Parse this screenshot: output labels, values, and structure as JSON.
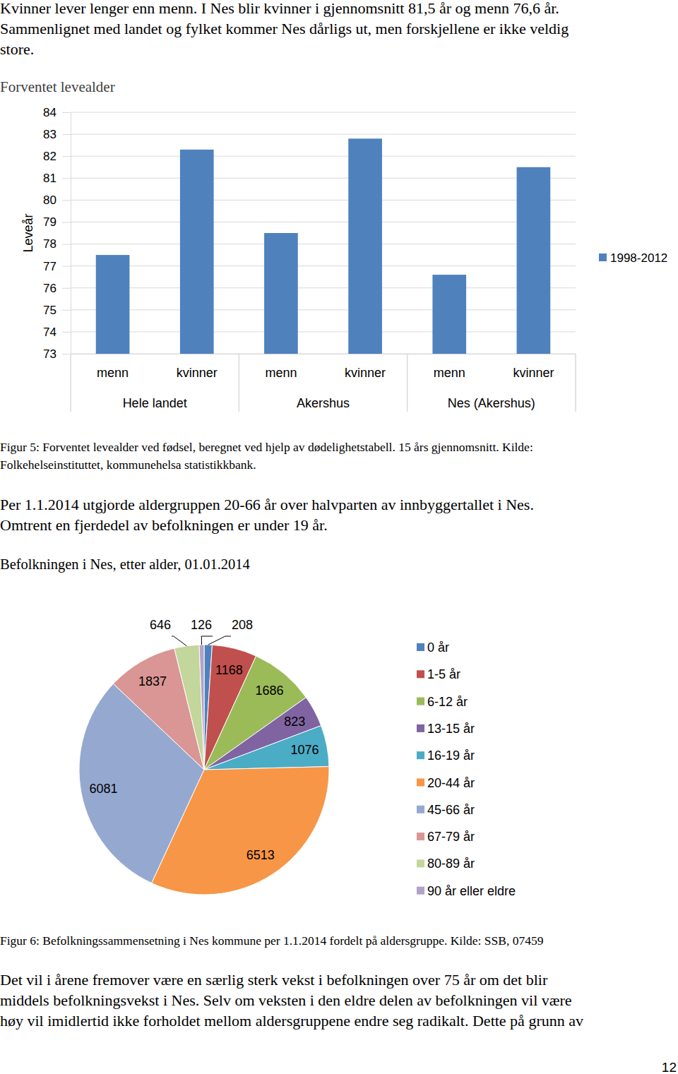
{
  "text": {
    "intro": [
      "Kvinner lever lenger enn menn. I Nes blir kvinner i gjennomsnitt 81,5 år og menn 76,6 år.",
      "Sammenlignet med landet og fylket kommer Nes dårligs ut, men forskjellene er ikke veldig",
      "store."
    ],
    "figure5_caption": [
      "Figur 5: Forventet levealder ved fødsel, beregnet ved hjelp av dødelighetstabell. 15 års gjennomsnitt. Kilde:",
      "Folkehelseinstituttet, kommunehelsa statistikkbank."
    ],
    "population_intro": [
      "Per 1.1.2014 utgjorde aldergruppen 20-66 år over halvparten av innbyggertallet i Nes.",
      "Omtrent en fjerdedel av befolkningen er under 19 år."
    ],
    "figure6_caption": [
      "Figur 6: Befolkningssammensetning i Nes kommune per 1.1.2014 fordelt på aldersgruppe. Kilde: SSB, 07459"
    ],
    "outro": [
      "Det vil i årene fremover være en særlig sterk vekst i befolkningen over 75 år om det blir",
      "middels befolkningsvekst i Nes. Selv om veksten i den eldre delen av befolkningen vil være",
      "høy vil imidlertid ikke forholdet mellom aldersgruppene endre seg radikalt. Dette på grunn av"
    ],
    "page_number": "12"
  },
  "chart_data": [
    {
      "type": "bar",
      "title": "Forventet levealder",
      "y_label": "Leveår",
      "categories": [
        "menn",
        "kvinner",
        "menn",
        "kvinner",
        "menn",
        "kvinner"
      ],
      "category_groups": [
        "Hele landet",
        "Akershus",
        "Nes (Akershus)"
      ],
      "series": [
        {
          "name": "1998-2012",
          "color": "#4f81bd",
          "values": [
            77.5,
            82.3,
            78.5,
            82.8,
            76.6,
            81.5
          ]
        }
      ],
      "ylim": [
        73,
        84
      ],
      "yticks": [
        73,
        74,
        75,
        76,
        77,
        78,
        79,
        80,
        81,
        82,
        83,
        84
      ],
      "grid": true,
      "legend": "right"
    },
    {
      "type": "pie",
      "title": "Befolkningen i Nes, etter alder, 01.01.2014",
      "categories": [
        "0 år",
        "1-5 år",
        "6-12 år",
        "13-15 år",
        "16-19 år",
        "20-44 år",
        "45-66 år",
        "67-79 år",
        "80-89 år",
        "90 år eller eldre"
      ],
      "values": [
        208,
        1168,
        1686,
        823,
        1076,
        6513,
        6081,
        1837,
        646,
        126
      ],
      "colors": [
        "#4f81bd",
        "#c0504d",
        "#9bbb59",
        "#8064a2",
        "#4bacc6",
        "#f79646",
        "#95a9d0",
        "#d99694",
        "#c3d69b",
        "#b2a2c7"
      ],
      "data_labels": true,
      "legend": "right"
    }
  ]
}
